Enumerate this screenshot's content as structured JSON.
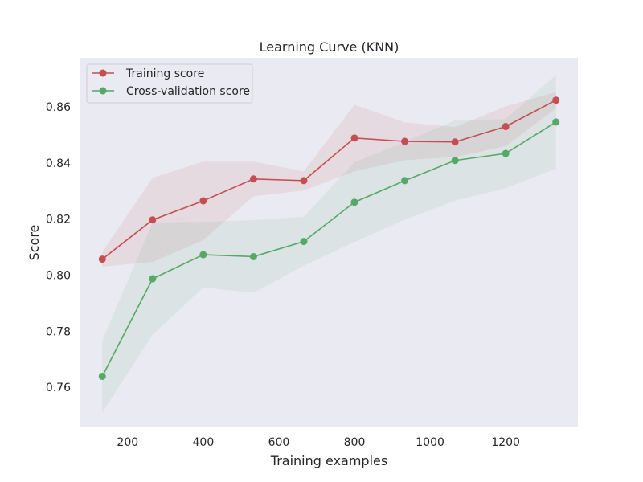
{
  "chart_data": {
    "type": "line",
    "title": "Learning Curve (KNN)",
    "xlabel": "Training examples",
    "ylabel": "Score",
    "x": [
      133,
      266,
      400,
      533,
      666,
      800,
      933,
      1066,
      1200,
      1333
    ],
    "xlim": [
      75,
      1391
    ],
    "ylim": [
      0.7457,
      0.8775
    ],
    "xticks": [
      200,
      400,
      600,
      800,
      1000,
      1200
    ],
    "yticks": [
      0.76,
      0.78,
      0.8,
      0.82,
      0.84,
      0.86
    ],
    "xtick_labels": [
      "200",
      "400",
      "600",
      "800",
      "1000",
      "1200"
    ],
    "ytick_labels": [
      "0.76",
      "0.78",
      "0.80",
      "0.82",
      "0.84",
      "0.86"
    ],
    "grid": false,
    "legend_position": "top-left",
    "background": "#eaeaf2",
    "series": [
      {
        "name": "Training score",
        "color": "#c44e52",
        "values": [
          0.8057,
          0.8197,
          0.8265,
          0.8343,
          0.8337,
          0.8489,
          0.8477,
          0.8475,
          0.853,
          0.8624
        ],
        "band_upper": [
          0.8083,
          0.8347,
          0.8405,
          0.8405,
          0.837,
          0.8608,
          0.8545,
          0.8528,
          0.8602,
          0.8653
        ],
        "band_lower": [
          0.803,
          0.8047,
          0.8125,
          0.8281,
          0.8302,
          0.837,
          0.841,
          0.8421,
          0.846,
          0.8595
        ]
      },
      {
        "name": "Cross-validation score",
        "color": "#55a868",
        "values": [
          0.7639,
          0.7987,
          0.8073,
          0.8066,
          0.812,
          0.826,
          0.8337,
          0.8409,
          0.8434,
          0.8546
        ],
        "band_upper": [
          0.7767,
          0.8188,
          0.819,
          0.8196,
          0.8208,
          0.8403,
          0.8475,
          0.8552,
          0.8557,
          0.8714
        ],
        "band_lower": [
          0.751,
          0.7788,
          0.7956,
          0.7937,
          0.8034,
          0.8118,
          0.8198,
          0.8266,
          0.831,
          0.838
        ]
      }
    ]
  }
}
